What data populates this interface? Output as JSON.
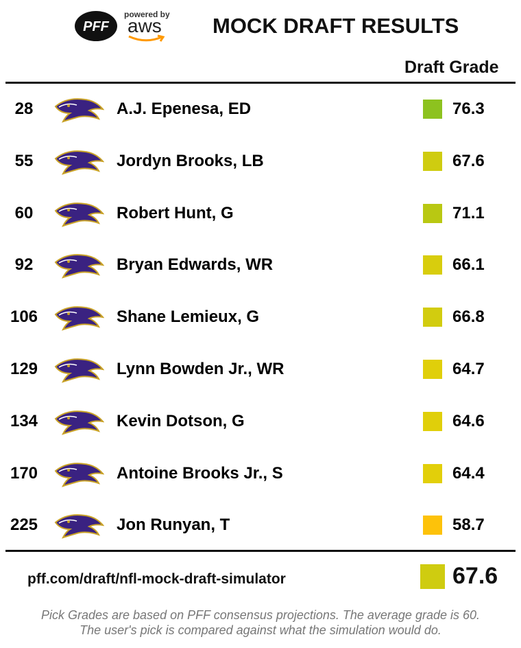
{
  "header": {
    "logo": {
      "brand": "PFF",
      "powered_by": "powered by",
      "partner": "aws"
    },
    "title": "MOCK DRAFT RESULTS"
  },
  "table": {
    "column_header": "Draft Grade",
    "rows": [
      {
        "pick": 28,
        "player": "A.J. Epenesa, ED",
        "grade": 76.3,
        "color": "#8dc21f"
      },
      {
        "pick": 55,
        "player": "Jordyn Brooks, LB",
        "grade": 67.6,
        "color": "#cfcc10"
      },
      {
        "pick": 60,
        "player": "Robert Hunt, G",
        "grade": 71.1,
        "color": "#b9c812"
      },
      {
        "pick": 92,
        "player": "Bryan Edwards, WR",
        "grade": 66.1,
        "color": "#d8cd0d"
      },
      {
        "pick": 106,
        "player": "Shane Lemieux, G",
        "grade": 66.8,
        "color": "#d2cc0f"
      },
      {
        "pick": 129,
        "player": "Lynn Bowden Jr., WR",
        "grade": 64.7,
        "color": "#e0cf0a"
      },
      {
        "pick": 134,
        "player": "Kevin Dotson, G",
        "grade": 64.6,
        "color": "#e0cf0a"
      },
      {
        "pick": 170,
        "player": "Antoine Brooks Jr., S",
        "grade": 64.4,
        "color": "#e2cf0a"
      },
      {
        "pick": 225,
        "player": "Jon Runyan, T",
        "grade": 58.7,
        "color": "#fdc20a"
      }
    ]
  },
  "footer": {
    "url": "pff.com/draft/nfl-mock-draft-simulator",
    "overall_grade": 67.6,
    "overall_color": "#cfcc10",
    "note": [
      "Pick Grades are based on PFF consensus projections. The average grade is 60.",
      "The user's pick is compared against what the simulation would do."
    ]
  }
}
